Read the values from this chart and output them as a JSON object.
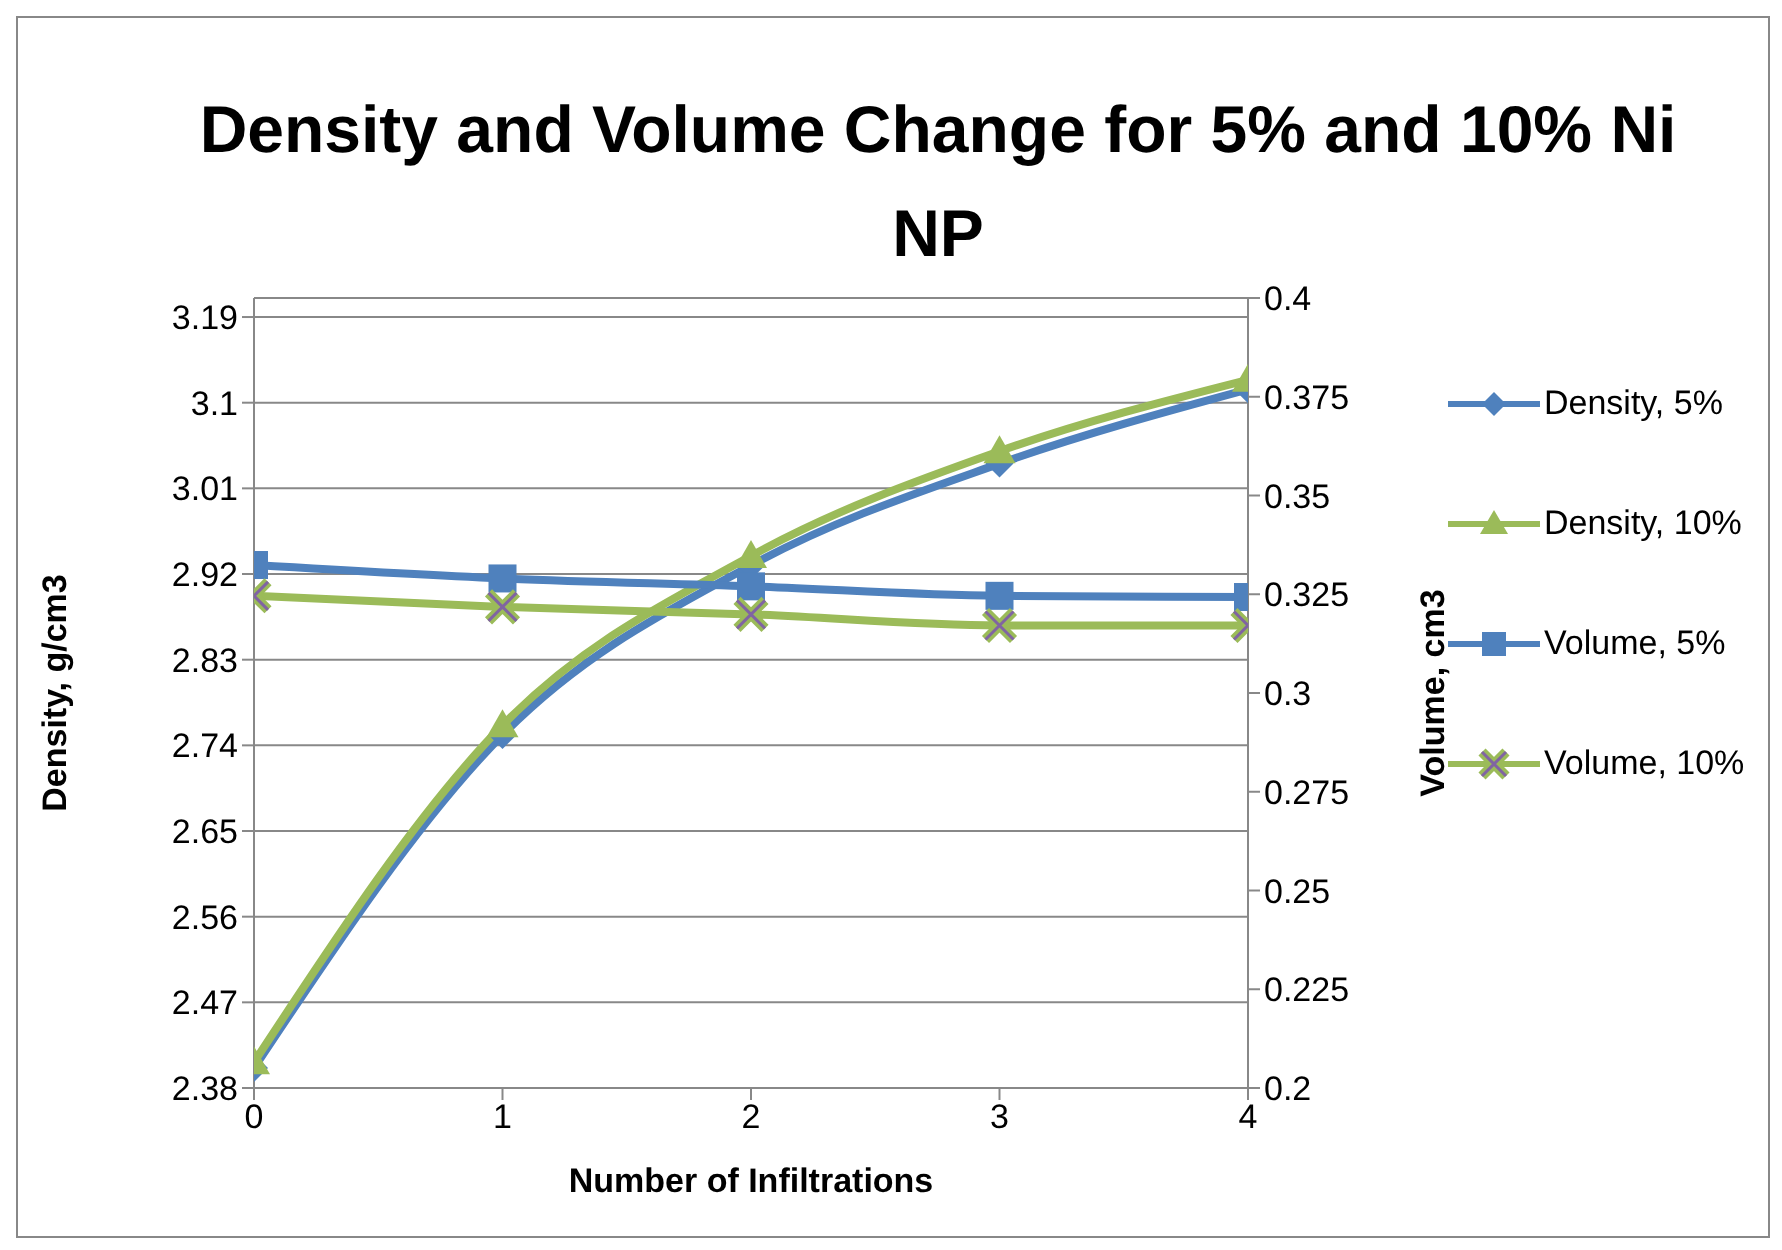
{
  "chart_data": {
    "type": "line",
    "title": "Density and Volume Change for 5% and 10% Ni NP",
    "xlabel": "Number of Infiltrations",
    "ylabel": "Density, g/cm3",
    "y2label": "Volume, cm3",
    "categories": [
      "0",
      "1",
      "2",
      "3",
      "4"
    ],
    "series": [
      {
        "name": "Density, 5%",
        "color": "#4f81bd",
        "marker": "diamond",
        "values": [
          2.401,
          2.751,
          2.929,
          3.036,
          3.114
        ]
      },
      {
        "name": "Density, 10%",
        "color": "#9bbb59",
        "marker": "triangle",
        "values": [
          2.407,
          2.761,
          2.939,
          3.049,
          3.124
        ]
      },
      {
        "name": "Volume, 5%",
        "color": "#4f81bd",
        "marker": "square",
        "axis": "y2",
        "values": [
          0.3324,
          0.329,
          0.327,
          0.3246,
          0.3243
        ]
      },
      {
        "name": "Volume, 10%",
        "color": "#9bbb59",
        "marker": "cross",
        "axis": "y2",
        "values": [
          0.3246,
          0.3218,
          0.3199,
          0.3171,
          0.3171
        ]
      }
    ],
    "ylim": [
      2.38,
      3.21
    ],
    "yticks": [
      2.38,
      2.47,
      2.56,
      2.65,
      2.74,
      2.83,
      2.92,
      3.01,
      3.1,
      3.19
    ],
    "y2lim": [
      0.2,
      0.4
    ],
    "y2ticks": [
      0.2,
      0.225,
      0.25,
      0.275,
      0.3,
      0.325,
      0.35,
      0.375,
      0.4
    ],
    "grid": "y",
    "legend": "right"
  }
}
